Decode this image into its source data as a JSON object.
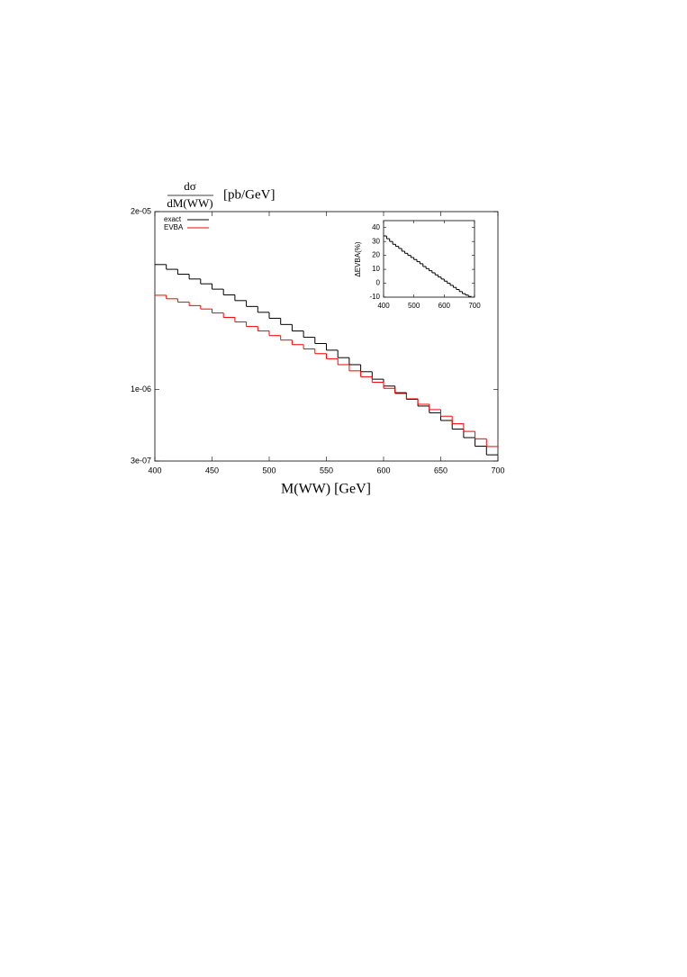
{
  "chart_data": [
    {
      "type": "histogram",
      "y_label": {
        "numerator": "dσ",
        "denominator": "dM(WW)",
        "unit": "[pb/GeV]"
      },
      "x_label": "M(WW) [GeV]",
      "log_y": true,
      "legend": "top-left",
      "xlim": [
        400,
        700
      ],
      "xticks": [
        400,
        450,
        500,
        550,
        600,
        650,
        700
      ],
      "ylim": [
        3e-07,
        2e-05
      ],
      "yticks": [
        {
          "value": 2e-05,
          "label": "2e-05"
        },
        {
          "value": 1e-06,
          "label": "1e-06"
        },
        {
          "value": 3e-07,
          "label": "3e-07"
        }
      ],
      "bins": [
        400,
        410,
        420,
        430,
        440,
        450,
        460,
        470,
        480,
        490,
        500,
        510,
        520,
        530,
        540,
        550,
        560,
        570,
        580,
        590,
        600,
        610,
        620,
        630,
        640,
        650,
        660,
        670,
        680,
        690,
        700
      ],
      "series": [
        {
          "name": "exact",
          "color": "#000000",
          "values": [
            8.2e-06,
            7.57e-06,
            6.97e-06,
            6.43e-06,
            5.93e-06,
            5.42e-06,
            4.92e-06,
            4.47e-06,
            4.05e-06,
            3.67e-06,
            3.32e-06,
            2.99e-06,
            2.68e-06,
            2.41e-06,
            2.17e-06,
            1.94e-06,
            1.71e-06,
            1.52e-06,
            1.35e-06,
            1.19e-06,
            1.06e-06,
            9.48e-07,
            8.48e-07,
            7.57e-07,
            6.76e-07,
            5.94e-07,
            5.14e-07,
            4.45e-07,
            3.85e-07,
            3.33e-07
          ]
        },
        {
          "name": "EVBA",
          "color": "#ff0000",
          "values": [
            4.89e-06,
            4.61e-06,
            4.36e-06,
            4.11e-06,
            3.88e-06,
            3.63e-06,
            3.37e-06,
            3.12e-06,
            2.89e-06,
            2.68e-06,
            2.48e-06,
            2.3e-06,
            2.13e-06,
            1.98e-06,
            1.83e-06,
            1.68e-06,
            1.52e-06,
            1.37e-06,
            1.24e-06,
            1.13e-06,
            1.02e-06,
            9.35e-07,
            8.55e-07,
            7.8e-07,
            7.13e-07,
            6.38e-07,
            5.62e-07,
            4.94e-07,
            4.36e-07,
            3.83e-07
          ]
        }
      ]
    },
    {
      "type": "histogram",
      "y_label": "ΔEVBA(%)",
      "xlim": [
        400,
        700
      ],
      "xticks": [
        400,
        500,
        600,
        700
      ],
      "ylim": [
        -10,
        45
      ],
      "yticks": [
        -10,
        0,
        10,
        20,
        30,
        40
      ],
      "bins": [
        400,
        410,
        420,
        430,
        440,
        450,
        460,
        470,
        480,
        490,
        500,
        510,
        520,
        530,
        540,
        550,
        560,
        570,
        580,
        590,
        600,
        610,
        620,
        630,
        640,
        650,
        660,
        670,
        680,
        690
      ],
      "series": [
        {
          "color": "#000000",
          "values": [
            34,
            32,
            30,
            28,
            26.5,
            25,
            23,
            21.5,
            20,
            18.5,
            17,
            15.5,
            14,
            12,
            10.5,
            9,
            7.5,
            6,
            4.5,
            3,
            1.5,
            0,
            -1.5,
            -3,
            -4.5,
            -6,
            -7.5,
            -8.5,
            -9.5
          ]
        }
      ]
    }
  ]
}
